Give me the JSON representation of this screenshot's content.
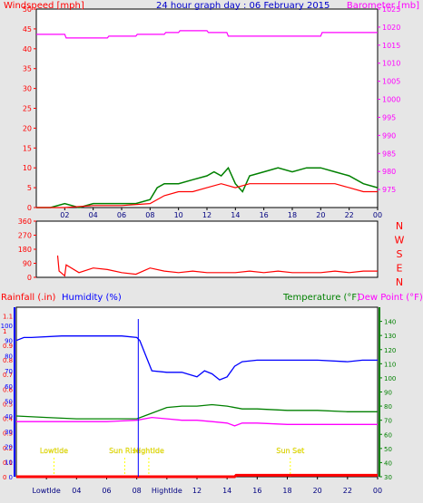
{
  "chart_data": [
    {
      "type": "line",
      "title": "24 hour graph day : 06 February 2015",
      "ylabel": "Windspeed [mph]",
      "y2label": "Barometer [mb]",
      "ylim": [
        0,
        50
      ],
      "y2lim": [
        970,
        1025
      ],
      "yticks": [
        "0",
        "5",
        "10",
        "15",
        "20",
        "25",
        "30",
        "35",
        "40",
        "45",
        "50"
      ],
      "y2ticks": [
        "975",
        "980",
        "985",
        "990",
        "995",
        "1000",
        "1005",
        "1010",
        "1015",
        "1020",
        "1025"
      ],
      "xticks": [
        "02",
        "04",
        "06",
        "08",
        "10",
        "12",
        "14",
        "16",
        "18",
        "20",
        "22",
        "00"
      ],
      "series": [
        {
          "color": "#008000",
          "kind": "wind-gust",
          "x": [
            0,
            1,
            2,
            3,
            4,
            5,
            6,
            7,
            8,
            8.5,
            9,
            10,
            11,
            12,
            12.5,
            13,
            13.5,
            14,
            14.5,
            15,
            16,
            17,
            18,
            19,
            20,
            21,
            22,
            23,
            24
          ],
          "y": [
            0,
            0,
            1,
            0,
            1,
            1,
            1,
            1,
            2,
            5,
            6,
            6,
            7,
            8,
            9,
            8,
            10,
            6,
            4,
            8,
            9,
            10,
            9,
            10,
            10,
            9,
            8,
            6,
            5
          ]
        },
        {
          "color": "#ff0000",
          "kind": "wind-average",
          "x": [
            0,
            2,
            4,
            6,
            8,
            9,
            10,
            11,
            12,
            13,
            14,
            15,
            16,
            17,
            18,
            19,
            20,
            21,
            22,
            23,
            24
          ],
          "y": [
            0,
            0,
            0.5,
            0.5,
            1,
            3,
            4,
            4,
            5,
            6,
            5,
            6,
            6,
            6,
            6,
            6,
            6,
            6,
            5,
            4,
            4
          ]
        },
        {
          "color": "#ff00ff",
          "kind": "barometer",
          "x": [
            0,
            2,
            2.1,
            5,
            5.1,
            7,
            7.1,
            9,
            9.1,
            10,
            10.1,
            12,
            12.1,
            13.4,
            13.5,
            20,
            20.1,
            24
          ],
          "y": [
            1018,
            1018,
            1017,
            1017,
            1017.5,
            1017.5,
            1018,
            1018,
            1018.5,
            1018.5,
            1019,
            1019,
            1018.5,
            1018.5,
            1017.5,
            1017.5,
            1018.5,
            1018.5
          ]
        }
      ]
    },
    {
      "type": "line",
      "ylim": [
        0,
        360
      ],
      "yticks": [
        "0",
        "90",
        "180",
        "270",
        "360"
      ],
      "compass": [
        "N",
        "W",
        "S",
        "E",
        "N"
      ],
      "xticks": [
        "02",
        "04",
        "06",
        "08",
        "10",
        "12",
        "14",
        "16",
        "18",
        "20",
        "22",
        "00"
      ],
      "series": [
        {
          "color": "#ff0000",
          "kind": "wind-direction",
          "x": [
            1.5,
            1.6,
            2,
            2.1,
            3,
            4,
            5,
            6,
            7,
            8,
            9,
            10,
            11,
            12,
            13,
            14,
            15,
            16,
            17,
            18,
            19,
            20,
            21,
            22,
            23,
            24
          ],
          "y": [
            140,
            40,
            10,
            80,
            30,
            60,
            50,
            30,
            20,
            60,
            40,
            30,
            40,
            30,
            30,
            30,
            40,
            30,
            40,
            30,
            30,
            30,
            40,
            30,
            40,
            40
          ]
        }
      ]
    },
    {
      "type": "line",
      "y1label": "Rainfall (.in)",
      "y2label": "Humidity (%)",
      "y3label": "Temperature (°F)",
      "y4label": "Dew Point (°F)",
      "rain_ticks": [
        "0",
        "0.1",
        "0.2",
        "0.3",
        "0.4",
        "0.5",
        "0.6",
        "0.7",
        "0.8",
        "0.9",
        "1",
        "1.1"
      ],
      "humidity_ticks": [
        "0",
        "10",
        "20",
        "30",
        "40",
        "50",
        "60",
        "70",
        "80",
        "90",
        "100"
      ],
      "temp_ticks": [
        "30",
        "40",
        "50",
        "60",
        "70",
        "80",
        "90",
        "100",
        "110",
        "120",
        "130",
        "140"
      ],
      "temp_ylim": [
        30,
        150
      ],
      "xticks": [
        "LowtIde",
        "04",
        "06",
        "08",
        "HightIde",
        "12",
        "14",
        "16",
        "18",
        "20",
        "22",
        "00"
      ],
      "annotations": [
        {
          "label": "LowtIde",
          "x": 2.5
        },
        {
          "label": "Sun Rise",
          "x": 7.2
        },
        {
          "label": "HightIde",
          "x": 8.8
        },
        {
          "label": "Sun Set",
          "x": 18.2
        }
      ],
      "series": [
        {
          "color": "#0000ff",
          "kind": "humidity",
          "x": [
            0,
            0.5,
            1,
            3,
            5,
            6,
            7,
            8,
            8.2,
            8.6,
            9,
            10,
            11,
            12,
            12.5,
            13,
            13.5,
            14,
            14.5,
            15,
            16,
            17,
            18,
            20,
            22,
            23,
            24
          ],
          "y": [
            90,
            92,
            92,
            93,
            93,
            93,
            93,
            92,
            90,
            80,
            70,
            69,
            69,
            66,
            70,
            68,
            64,
            66,
            73,
            76,
            77,
            77,
            77,
            77,
            76,
            77,
            77
          ]
        },
        {
          "color": "#008000",
          "kind": "temperature",
          "x": [
            0,
            2,
            4,
            6,
            8,
            9,
            10,
            11,
            12,
            13,
            14,
            15,
            16,
            18,
            20,
            22,
            24
          ],
          "y": [
            73,
            72,
            71,
            71,
            71,
            75,
            79,
            80,
            80,
            81,
            80,
            78,
            78,
            77,
            77,
            76,
            76
          ]
        },
        {
          "color": "#ff00ff",
          "kind": "dew-point",
          "x": [
            0,
            2,
            4,
            6,
            8,
            9,
            10,
            11,
            12,
            13,
            14,
            14.5,
            15,
            16,
            18,
            20,
            22,
            24
          ],
          "y": [
            69,
            69,
            69,
            69,
            70,
            72,
            71,
            70,
            70,
            69,
            68,
            66,
            68,
            68,
            67,
            67,
            67,
            67
          ]
        },
        {
          "color": "#ff0000",
          "kind": "rainfall",
          "x": [
            0,
            14.5,
            14.6,
            24
          ],
          "y": [
            0,
            0,
            0.01,
            0.01
          ]
        }
      ]
    }
  ]
}
